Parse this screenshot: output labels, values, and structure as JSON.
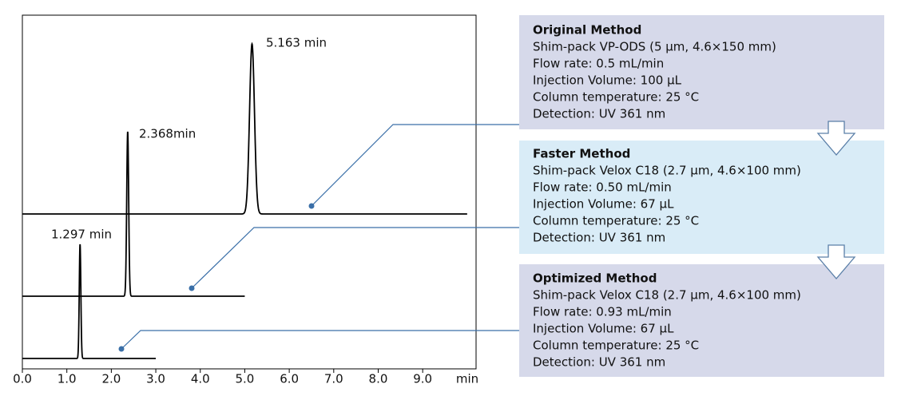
{
  "chart_data": {
    "type": "chromatogram",
    "xlim": [
      0,
      10.2
    ],
    "xticks": [
      {
        "value": 0,
        "label": "0.0"
      },
      {
        "value": 1,
        "label": "1.0"
      },
      {
        "value": 2,
        "label": "2.0"
      },
      {
        "value": 3,
        "label": "3.0"
      },
      {
        "value": 4,
        "label": "4.0"
      },
      {
        "value": 5,
        "label": "5.0"
      },
      {
        "value": 6,
        "label": "6.0"
      },
      {
        "value": 7,
        "label": "7.0"
      },
      {
        "value": 8,
        "label": "8.0"
      },
      {
        "value": 9,
        "label": "9.0"
      }
    ],
    "x_unit": "min",
    "series": [
      {
        "name": "Original Method",
        "color": "#000000",
        "peak": 5.163,
        "peak_label": "5.163 min",
        "end": 10.0,
        "details": [
          "Shim-pack VP-ODS (5 µm, 4.6×150 mm)",
          "Flow rate: 0.5 mL/min",
          "Injection Volume: 100 µL",
          "Column temperature: 25 °C",
          "Detection: UV 361 nm"
        ]
      },
      {
        "name": "Faster Method",
        "color": "#000000",
        "peak": 2.368,
        "peak_label": "2.368min",
        "end": 5.0,
        "details": [
          "Shim-pack Velox C18 (2.7 µm, 4.6×100 mm)",
          "Flow rate: 0.50 mL/min",
          "Injection Volume: 67 µL",
          "Column temperature: 25 °C",
          "Detection: UV 361 nm"
        ]
      },
      {
        "name": "Optimized Method",
        "color": "#000000",
        "peak": 1.297,
        "peak_label": "1.297 min",
        "end": 3.0,
        "details": [
          "Shim-pack Velox C18 (2.7 µm, 4.6×100 mm)",
          "Flow rate: 0.93 mL/min",
          "Injection Volume: 67 µL",
          "Column temperature: 25 °C",
          "Detection: UV 361 nm"
        ]
      }
    ]
  }
}
